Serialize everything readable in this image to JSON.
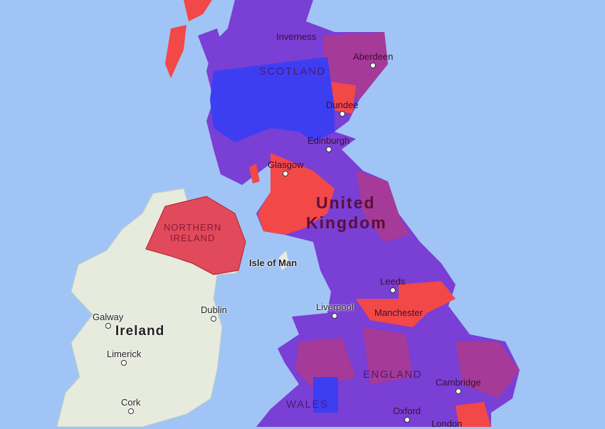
{
  "colors": {
    "sea": "#a0c4f6",
    "land_neutral": "#e6ebdd",
    "purple": "#7a3fd4",
    "blue": "#3d3ef2",
    "red": "#f24848",
    "magenta": "#a63a98"
  },
  "labels": {
    "inverness": "Inverness",
    "aberdeen": "Aberdeen",
    "scotland": "SCOTLAND",
    "dundee": "Dundee",
    "edinburgh": "Edinburgh",
    "glasgow": "Glasgow",
    "uk_line1": "United",
    "uk_line2": "Kingdom",
    "northern_ireland_1": "NORTHERN",
    "northern_ireland_2": "IRELAND",
    "isle_of_man": "Isle of Man",
    "leeds": "Leeds",
    "liverpool": "Liverpool",
    "manchester": "Manchester",
    "galway": "Galway",
    "ireland": "Ireland",
    "dublin": "Dublin",
    "limerick": "Limerick",
    "cork": "Cork",
    "england": "ENGLAND",
    "cambridge": "Cambridge",
    "wales": "WALES",
    "oxford": "Oxford",
    "london": "London"
  }
}
